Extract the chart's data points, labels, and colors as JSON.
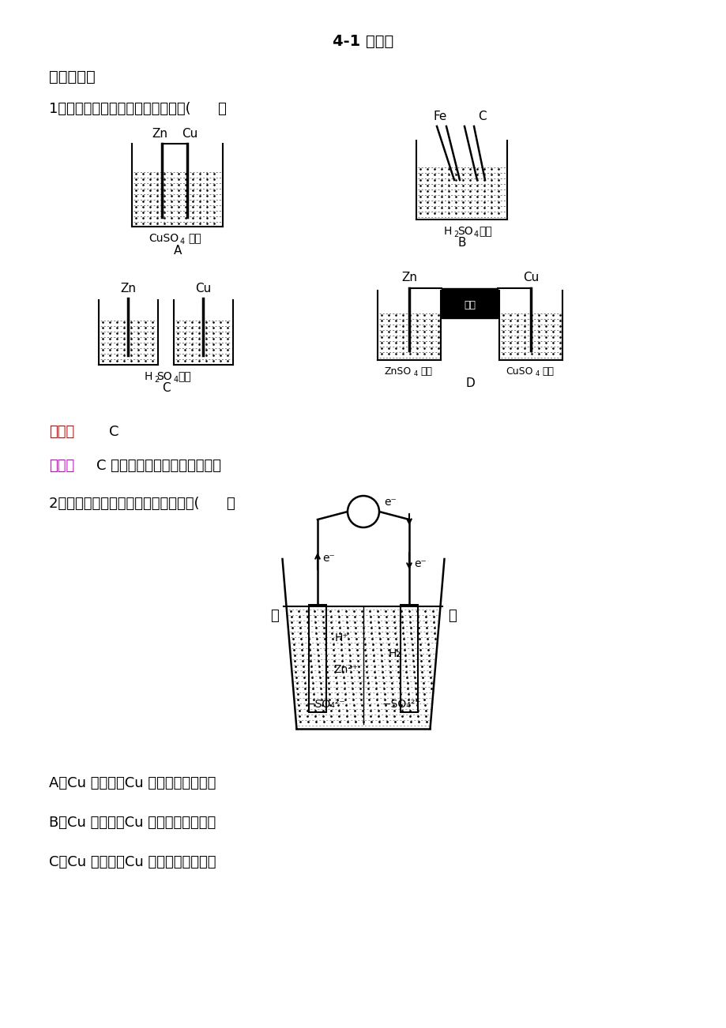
{
  "title": "4-1 原电池",
  "section1": "一、选择题",
  "q1": "1．下列装置不可以组成原电池的是(      ）",
  "answer_label": "答案：",
  "answer_value": "C",
  "hint_label": "点拨：",
  "hint_text": "C 中的装置不能形成闭合回路。",
  "q2": "2．如图所示装置，下列说法正确的是(      ）",
  "optA": "A．Cu 为正极，Cu 片上发生还原反应",
  "optB": "B．Cu 为正极，Cu 片上发生氧化反应",
  "optC": "C．Cu 为负极，Cu 片上发生还原反应",
  "bg_color": "#ffffff",
  "text_color": "#000000",
  "answer_color": "#cc0000",
  "hint_color": "#cc00cc"
}
